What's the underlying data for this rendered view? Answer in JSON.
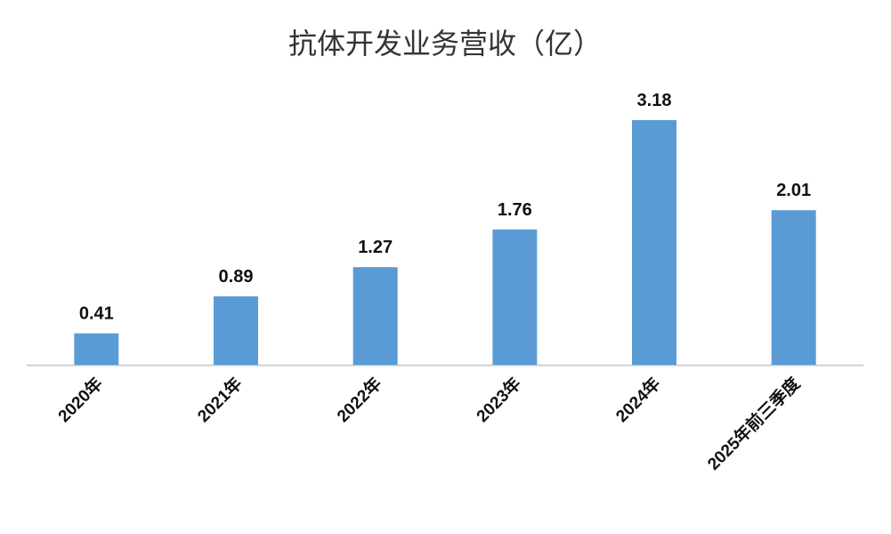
{
  "chart_data": {
    "type": "bar",
    "title": "抗体开发业务营收（亿）",
    "categories": [
      "2020年",
      "2021年",
      "2022年",
      "2023年",
      "2024年",
      "2025年前三季度"
    ],
    "values": [
      0.41,
      0.89,
      1.27,
      1.76,
      3.18,
      2.01
    ],
    "color": "#5b9bd5"
  }
}
